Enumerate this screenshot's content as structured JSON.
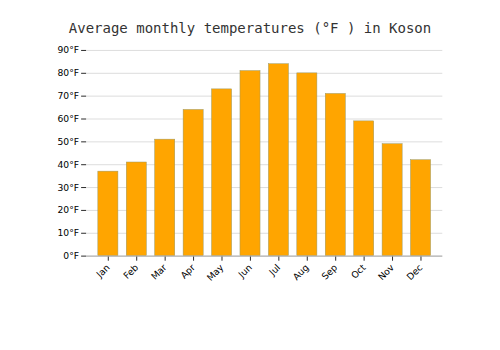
{
  "chart_data": {
    "type": "bar",
    "title": "Average monthly temperatures (°F ) in Koson",
    "categories": [
      "Jan",
      "Feb",
      "Mar",
      "Apr",
      "May",
      "Jun",
      "Jul",
      "Aug",
      "Sep",
      "Oct",
      "Nov",
      "Dec"
    ],
    "values": [
      37,
      41,
      51,
      64,
      73,
      81,
      84,
      80,
      71,
      59,
      49,
      42
    ],
    "color": "#FFA500",
    "ylim": [
      0,
      90
    ],
    "yticks": [
      {
        "value": 0,
        "label": "0°F"
      },
      {
        "value": 10,
        "label": "10°F"
      },
      {
        "value": 20,
        "label": "20°F"
      },
      {
        "value": 30,
        "label": "30°F"
      },
      {
        "value": 40,
        "label": "40°F"
      },
      {
        "value": 50,
        "label": "50°F"
      },
      {
        "value": 60,
        "label": "60°F"
      },
      {
        "value": 70,
        "label": "70°F"
      },
      {
        "value": 80,
        "label": "80°F"
      },
      {
        "value": 90,
        "label": "90°F"
      }
    ],
    "grid": true
  }
}
